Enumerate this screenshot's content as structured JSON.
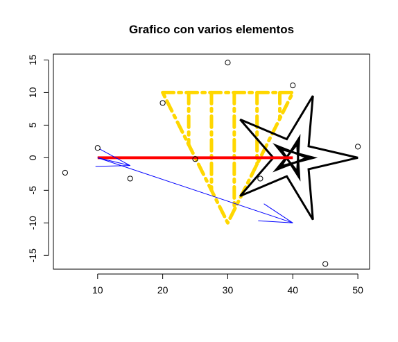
{
  "chart_data": {
    "type": "scatter",
    "title": "Grafico con varios elementos",
    "xlabel": "",
    "ylabel": "",
    "xlim": [
      3.2,
      51.8
    ],
    "ylim": [
      -17.1,
      15.9
    ],
    "grid": false,
    "xticks": [
      10,
      20,
      30,
      40,
      50
    ],
    "yticks": [
      -15,
      -10,
      -5,
      0,
      5,
      10,
      15
    ],
    "points": [
      {
        "x": 5,
        "y": -2.3
      },
      {
        "x": 10,
        "y": 1.5
      },
      {
        "x": 15,
        "y": -3.2
      },
      {
        "x": 20,
        "y": 8.4
      },
      {
        "x": 25,
        "y": -0.2
      },
      {
        "x": 30,
        "y": 14.6
      },
      {
        "x": 35,
        "y": -3.2
      },
      {
        "x": 40,
        "y": 11.1
      },
      {
        "x": 45,
        "y": -16.3
      },
      {
        "x": 50,
        "y": 1.7
      }
    ],
    "segment": {
      "x0": 10,
      "y0": 0,
      "x1": 40,
      "y1": 0,
      "color": "#ff0000"
    },
    "arrows": [
      {
        "x0": 10,
        "y0": 0,
        "x1": 15,
        "y1": -1.2,
        "color": "#0000ff"
      },
      {
        "x0": 10,
        "y0": 0,
        "x1": 40,
        "y1": -10,
        "color": "#0000ff"
      }
    ],
    "stars": [
      {
        "cx": 40,
        "cy": 0,
        "outer": [
          43.2,
          50
        ],
        "inner": [
          37.8,
          43.0
        ],
        "color": "#000000"
      }
    ],
    "dashed_shape": {
      "color": "#ffd700",
      "outline": [
        [
          20,
          10
        ],
        [
          40,
          10
        ],
        [
          30,
          -10
        ]
      ],
      "verticals": [
        24,
        27.5,
        31,
        34.5,
        38
      ]
    }
  }
}
